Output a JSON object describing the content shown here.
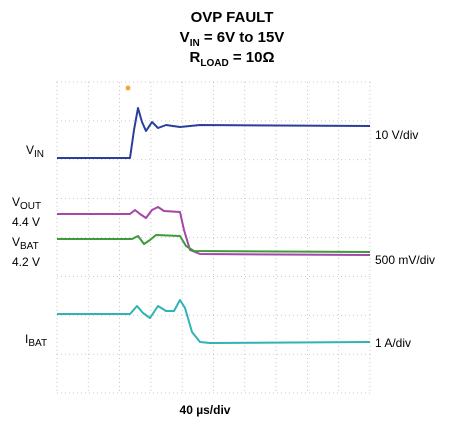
{
  "title": {
    "line1": "OVP FAULT",
    "line2": [
      "V",
      "IN",
      " = 6V to 15V"
    ],
    "line3": [
      "R",
      "LOAD",
      " = 10Ω"
    ]
  },
  "left_labels": {
    "vin": [
      "V",
      "IN"
    ],
    "vout": [
      "V",
      "OUT"
    ],
    "vout_level": "4.4 V",
    "vbat": [
      "V",
      "BAT"
    ],
    "vbat_level": "4.2 V",
    "ibat": [
      "I",
      "BAT"
    ]
  },
  "right_labels": {
    "vin_scale": "10 V/div",
    "v_scale": "500 mV/div",
    "i_scale": "1 A/div"
  },
  "time_scale": "40 µs/div"
}
